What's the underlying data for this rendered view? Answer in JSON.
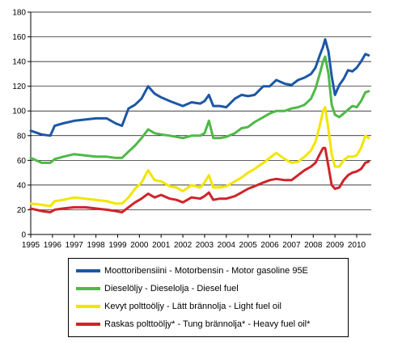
{
  "chart_data": {
    "type": "line",
    "title": "",
    "xlabel": "",
    "ylabel": "",
    "ylim": [
      0,
      180
    ],
    "yticks": [
      0,
      20,
      40,
      60,
      80,
      100,
      120,
      140,
      160,
      180
    ],
    "xlim": [
      1995,
      2010.67
    ],
    "xticks": [
      "1995",
      "1996",
      "1997",
      "1998",
      "1999",
      "2000",
      "2001",
      "2002",
      "2003",
      "2004",
      "2005",
      "2006",
      "2007",
      "2008",
      "2009",
      "2010"
    ],
    "grid": "horizontal",
    "legend_position": "bottom",
    "x": [
      1995.0,
      1995.5,
      1995.9,
      1996.1,
      1996.5,
      1997.0,
      1997.5,
      1998.0,
      1998.5,
      1998.9,
      1999.2,
      1999.5,
      1999.8,
      2000.1,
      2000.4,
      2000.7,
      2001.0,
      2001.4,
      2001.7,
      2002.0,
      2002.4,
      2002.8,
      2003.0,
      2003.2,
      2003.4,
      2003.7,
      2004.0,
      2004.4,
      2004.7,
      2005.0,
      2005.3,
      2005.7,
      2006.0,
      2006.3,
      2006.7,
      2007.0,
      2007.3,
      2007.6,
      2007.9,
      2008.1,
      2008.3,
      2008.45,
      2008.55,
      2008.7,
      2008.85,
      2009.0,
      2009.2,
      2009.4,
      2009.6,
      2009.8,
      2010.0,
      2010.2,
      2010.4,
      2010.55
    ],
    "series": [
      {
        "name": "Moottoribensiini - Motorbensin - Motor gasoline 95E",
        "color": "#1c57a5",
        "values": [
          84,
          81,
          80,
          88,
          90,
          92,
          93,
          94,
          94,
          90,
          88,
          102,
          105,
          110,
          120,
          114,
          111,
          108,
          106,
          104,
          107,
          106,
          108,
          113,
          104,
          104,
          103,
          110,
          113,
          112,
          113,
          120,
          120,
          125,
          122,
          121,
          125,
          127,
          130,
          135,
          145,
          152,
          158,
          148,
          128,
          113,
          121,
          126,
          133,
          132,
          135,
          140,
          146,
          145
        ]
      },
      {
        "name": "Dieselöljy - Dieselolja - Diesel fuel",
        "color": "#4eb947",
        "values": [
          62,
          58,
          58,
          61,
          63,
          65,
          64,
          63,
          63,
          62,
          62,
          67,
          72,
          78,
          85,
          82,
          81,
          80,
          79,
          78,
          80,
          80,
          82,
          92,
          78,
          78,
          79,
          82,
          86,
          87,
          91,
          95,
          98,
          100,
          100,
          102,
          103,
          105,
          110,
          118,
          130,
          140,
          144,
          130,
          105,
          97,
          95,
          98,
          101,
          104,
          103,
          108,
          115,
          116
        ]
      },
      {
        "name": "Kevyt polttoöljy - Lätt brännolja - Light fuel oil",
        "color": "#f2e500",
        "values": [
          25,
          24,
          23,
          27,
          28,
          30,
          29,
          28,
          27,
          25,
          25,
          30,
          37,
          42,
          52,
          44,
          43,
          39,
          38,
          35,
          40,
          38,
          42,
          48,
          38,
          38,
          39,
          43,
          46,
          50,
          53,
          58,
          62,
          66,
          61,
          58,
          59,
          63,
          68,
          75,
          88,
          100,
          103,
          85,
          65,
          55,
          55,
          60,
          63,
          63,
          64,
          70,
          80,
          78
        ]
      },
      {
        "name": "Raskas polttoöljy* - Tung brännolja* - Heavy fuel oil*",
        "color": "#d0232a",
        "values": [
          21,
          19,
          18,
          20,
          21,
          22,
          22,
          21,
          20,
          19,
          18,
          22,
          26,
          29,
          33,
          30,
          32,
          29,
          28,
          26,
          30,
          29,
          31,
          34,
          28,
          29,
          29,
          31,
          34,
          37,
          39,
          42,
          44,
          45,
          44,
          44,
          48,
          52,
          55,
          58,
          65,
          70,
          70,
          55,
          40,
          37,
          38,
          44,
          48,
          50,
          51,
          53,
          58,
          59
        ]
      }
    ]
  }
}
